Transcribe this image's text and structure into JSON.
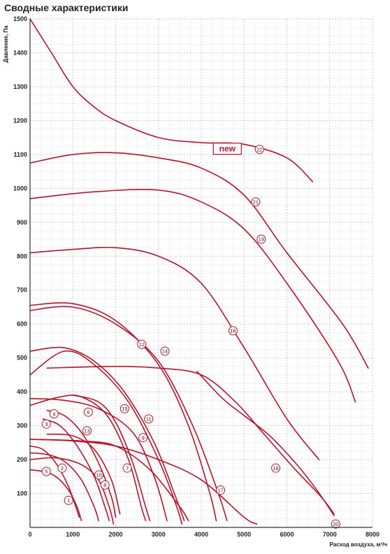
{
  "page": {
    "title": "Сводные характеристики"
  },
  "colors": {
    "curve": "#b4142a",
    "grid_major": "#c7c7c7",
    "grid_minor": "#e8e8e8",
    "axis": "#333333"
  },
  "chart_data": {
    "type": "line",
    "title": "Сводные характеристики",
    "xlabel": "Расход воздуха, м³/ч",
    "ylabel": "Давление, Па",
    "xlim": [
      0,
      8000
    ],
    "ylim": [
      0,
      1500
    ],
    "x_ticks": [
      "0",
      "1000",
      "2000",
      "3000",
      "4000",
      "5000",
      "6000",
      "7000",
      "8000"
    ],
    "y_ticks": [
      "100",
      "200",
      "300",
      "400",
      "500",
      "600",
      "700",
      "800",
      "900",
      "1000",
      "1100",
      "1200",
      "1300",
      "1400",
      "1500"
    ],
    "grid": true,
    "annotation": "new",
    "series": [
      {
        "name": "1",
        "label_at": [
          900,
          80
        ],
        "points": [
          [
            0,
            240
          ],
          [
            300,
            230
          ],
          [
            600,
            190
          ],
          [
            900,
            120
          ],
          [
            1150,
            30
          ]
        ]
      },
      {
        "name": "2",
        "label_at": [
          750,
          175
        ],
        "points": [
          [
            0,
            220
          ],
          [
            400,
            215
          ],
          [
            800,
            195
          ],
          [
            1200,
            140
          ],
          [
            1500,
            60
          ],
          [
            1600,
            20
          ]
        ]
      },
      {
        "name": "3",
        "label_at": [
          380,
          305
        ],
        "points": [
          [
            300,
            320
          ],
          [
            700,
            300
          ],
          [
            1100,
            240
          ],
          [
            1500,
            150
          ],
          [
            1750,
            60
          ],
          [
            1850,
            20
          ]
        ]
      },
      {
        "name": "4",
        "label_at": [
          560,
          335
        ],
        "points": [
          [
            400,
            345
          ],
          [
            800,
            330
          ],
          [
            1200,
            280
          ],
          [
            1600,
            190
          ],
          [
            1900,
            90
          ],
          [
            2000,
            30
          ]
        ]
      },
      {
        "name": "5",
        "label_at": [
          380,
          165
        ],
        "points": [
          [
            0,
            170
          ],
          [
            300,
            165
          ],
          [
            600,
            150
          ],
          [
            900,
            110
          ],
          [
            1100,
            60
          ],
          [
            1200,
            20
          ]
        ]
      },
      {
        "name": "6",
        "label_at": [
          1360,
          340
        ],
        "points": [
          [
            0,
            360
          ],
          [
            700,
            385
          ],
          [
            1200,
            385
          ],
          [
            1800,
            330
          ],
          [
            2300,
            200
          ],
          [
            2600,
            60
          ],
          [
            2700,
            20
          ]
        ]
      },
      {
        "name": "7",
        "label_at": [
          2270,
          175
        ],
        "points": [
          [
            1000,
            390
          ],
          [
            1600,
            370
          ],
          [
            2000,
            310
          ],
          [
            2400,
            190
          ],
          [
            2700,
            60
          ],
          [
            2800,
            20
          ]
        ]
      },
      {
        "name": "8",
        "label_at": [
          1750,
          125
        ],
        "points": [
          [
            0,
            200
          ],
          [
            600,
            205
          ],
          [
            1200,
            185
          ],
          [
            1600,
            140
          ],
          [
            1850,
            60
          ],
          [
            1950,
            10
          ]
        ]
      },
      {
        "name": "9",
        "label_at": [
          2640,
          265
        ],
        "points": [
          [
            0,
            380
          ],
          [
            800,
            375
          ],
          [
            1600,
            350
          ],
          [
            2400,
            280
          ],
          [
            2900,
            150
          ],
          [
            3200,
            20
          ]
        ]
      },
      {
        "name": "10",
        "label_at": [
          1610,
          155
        ],
        "points": [
          [
            400,
            275
          ],
          [
            1000,
            270
          ],
          [
            1500,
            230
          ],
          [
            1900,
            140
          ],
          [
            2100,
            40
          ]
        ]
      },
      {
        "name": "11",
        "label_at": [
          2770,
          320
        ],
        "points": [
          [
            0,
            450
          ],
          [
            800,
            520
          ],
          [
            1500,
            480
          ],
          [
            2300,
            370
          ],
          [
            3000,
            200
          ],
          [
            3400,
            70
          ],
          [
            3550,
            10
          ]
        ]
      },
      {
        "name": "12",
        "label_at": [
          2610,
          540
        ],
        "points": [
          [
            0,
            655
          ],
          [
            1000,
            660
          ],
          [
            2000,
            610
          ],
          [
            3000,
            480
          ],
          [
            3700,
            300
          ],
          [
            4200,
            100
          ],
          [
            4350,
            20
          ]
        ]
      },
      {
        "name": "13",
        "label_at": [
          1330,
          285
        ],
        "points": [
          [
            0,
            260
          ],
          [
            1200,
            255
          ],
          [
            2000,
            240
          ],
          [
            2800,
            170
          ],
          [
            3500,
            60
          ],
          [
            3700,
            20
          ]
        ]
      },
      {
        "name": "14",
        "label_at": [
          3150,
          520
        ],
        "points": [
          [
            0,
            640
          ],
          [
            1000,
            650
          ],
          [
            2000,
            600
          ],
          [
            3000,
            490
          ],
          [
            3800,
            300
          ],
          [
            4400,
            100
          ],
          [
            4600,
            20
          ]
        ]
      },
      {
        "name": "15",
        "label_at": [
          2210,
          350
        ],
        "points": [
          [
            0,
            520
          ],
          [
            800,
            530
          ],
          [
            1500,
            490
          ],
          [
            2200,
            400
          ],
          [
            2900,
            250
          ],
          [
            3400,
            90
          ],
          [
            3600,
            20
          ]
        ]
      },
      {
        "name": "16",
        "label_at": [
          4740,
          580
        ],
        "points": [
          [
            0,
            810
          ],
          [
            1000,
            820
          ],
          [
            2000,
            825
          ],
          [
            3000,
            800
          ],
          [
            4000,
            720
          ],
          [
            5000,
            530
          ],
          [
            6000,
            320
          ],
          [
            6750,
            200
          ]
        ]
      },
      {
        "name": "17",
        "label_at": [
          4450,
          110
        ],
        "points": [
          [
            0,
            260
          ],
          [
            1000,
            255
          ],
          [
            2000,
            240
          ],
          [
            3000,
            200
          ],
          [
            4000,
            140
          ],
          [
            5000,
            30
          ],
          [
            5300,
            10
          ]
        ]
      },
      {
        "name": "18",
        "label_at": [
          5740,
          175
        ],
        "points": [
          [
            400,
            470
          ],
          [
            2000,
            475
          ],
          [
            3000,
            470
          ],
          [
            4000,
            450
          ],
          [
            4800,
            370
          ],
          [
            5500,
            270
          ],
          [
            6200,
            170
          ],
          [
            6800,
            90
          ],
          [
            7100,
            40
          ]
        ]
      },
      {
        "name": "19",
        "label_at": [
          5400,
          850
        ],
        "points": [
          [
            0,
            970
          ],
          [
            1500,
            990
          ],
          [
            3000,
            995
          ],
          [
            4000,
            960
          ],
          [
            5000,
            880
          ],
          [
            6000,
            720
          ],
          [
            7200,
            490
          ],
          [
            7600,
            370
          ]
        ]
      },
      {
        "name": "20",
        "label_at": [
          7140,
          10
        ],
        "points": [
          [
            3900,
            460
          ],
          [
            4500,
            380
          ],
          [
            5000,
            330
          ],
          [
            5600,
            270
          ],
          [
            6200,
            190
          ],
          [
            6700,
            110
          ],
          [
            7100,
            35
          ]
        ]
      },
      {
        "name": "21",
        "label_at": [
          5270,
          960
        ],
        "points": [
          [
            0,
            1075
          ],
          [
            1000,
            1100
          ],
          [
            2000,
            1105
          ],
          [
            3000,
            1090
          ],
          [
            4000,
            1060
          ],
          [
            5000,
            980
          ],
          [
            6000,
            810
          ],
          [
            7300,
            600
          ],
          [
            7900,
            470
          ]
        ]
      },
      {
        "name": "22",
        "label_at": [
          5360,
          1115
        ],
        "points": [
          [
            0,
            1500
          ],
          [
            500,
            1400
          ],
          [
            1000,
            1300
          ],
          [
            1500,
            1240
          ],
          [
            2000,
            1200
          ],
          [
            3000,
            1150
          ],
          [
            4000,
            1135
          ],
          [
            5000,
            1130
          ],
          [
            6000,
            1090
          ],
          [
            6600,
            1020
          ]
        ]
      }
    ]
  }
}
